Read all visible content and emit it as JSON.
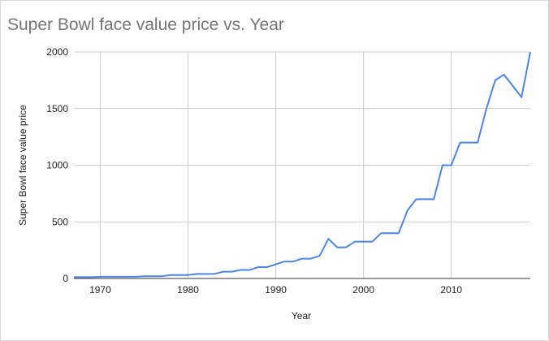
{
  "chart_data": {
    "type": "line",
    "title": "Super Bowl face value price vs. Year",
    "xlabel": "Year",
    "ylabel": "Super Bowl face value price",
    "xlim": [
      1967,
      2019
    ],
    "ylim": [
      0,
      2000
    ],
    "x_ticks": [
      1970,
      1980,
      1990,
      2000,
      2010
    ],
    "y_ticks": [
      0,
      500,
      1000,
      1500,
      2000
    ],
    "grid": true,
    "line_color": "#4a86e8",
    "series": [
      {
        "x": [
          1967,
          1968,
          1969,
          1970,
          1971,
          1972,
          1973,
          1974,
          1975,
          1976,
          1977,
          1978,
          1979,
          1980,
          1981,
          1982,
          1983,
          1984,
          1985,
          1986,
          1987,
          1988,
          1989,
          1990,
          1991,
          1992,
          1993,
          1994,
          1995,
          1996,
          1997,
          1998,
          1999,
          2000,
          2001,
          2002,
          2003,
          2004,
          2005,
          2006,
          2007,
          2008,
          2009,
          2010,
          2011,
          2012,
          2013,
          2014,
          2015,
          2016,
          2017,
          2018,
          2019
        ],
        "y": [
          12,
          12,
          12,
          15,
          15,
          15,
          15,
          15,
          20,
          20,
          20,
          30,
          30,
          30,
          40,
          40,
          40,
          60,
          60,
          75,
          75,
          100,
          100,
          125,
          150,
          150,
          175,
          175,
          200,
          350,
          275,
          275,
          325,
          325,
          325,
          400,
          400,
          400,
          600,
          700,
          700,
          700,
          1000,
          1000,
          1200,
          1200,
          1200,
          1500,
          1750,
          1800,
          1700,
          1600,
          2000
        ]
      }
    ]
  }
}
